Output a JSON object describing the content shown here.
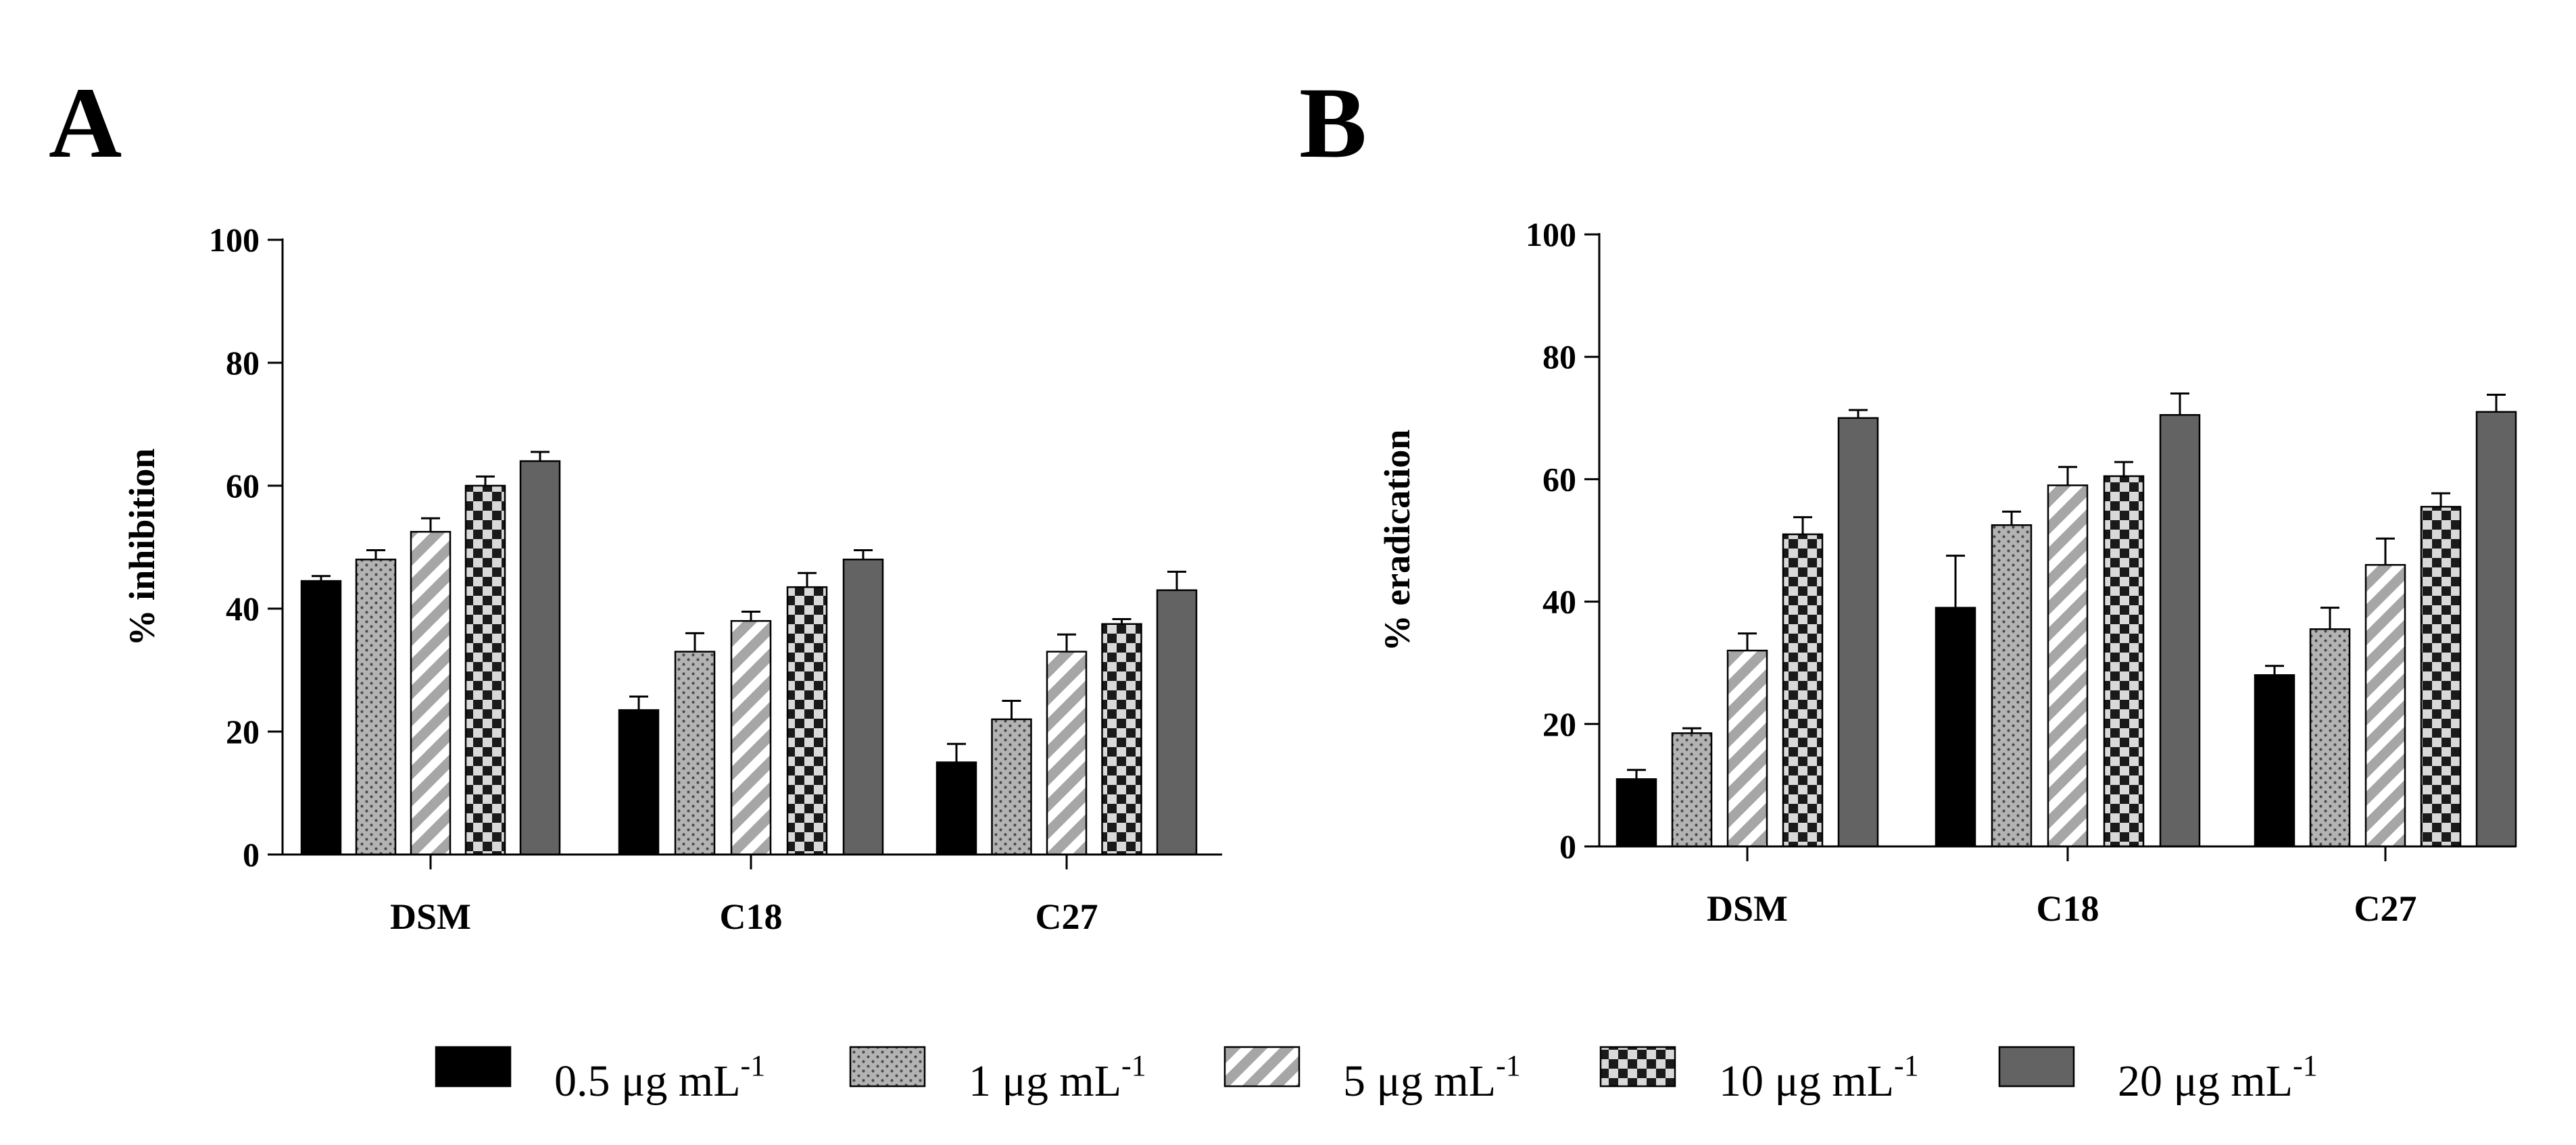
{
  "colors": {
    "black": "#000000",
    "dots_fill": "#b3b3b3",
    "stripes": "#a6a6a6",
    "checker_light": "#d9d9d9",
    "dark_grey": "#636363"
  },
  "legend": [
    {
      "label": "0.5 μg mL",
      "sup": "-1",
      "pattern": "solid-black"
    },
    {
      "label": "1 μg mL",
      "sup": "-1",
      "pattern": "dots"
    },
    {
      "label": "5 μg mL",
      "sup": "-1",
      "pattern": "stripes"
    },
    {
      "label": "10 μg mL",
      "sup": "-1",
      "pattern": "checker"
    },
    {
      "label": "20 μg mL",
      "sup": "-1",
      "pattern": "solid-grey"
    }
  ],
  "chart_data": [
    {
      "panel_label": "A",
      "type": "bar",
      "title": "",
      "xlabel": "",
      "ylabel": "% inhibition",
      "ylim": [
        0,
        100
      ],
      "yticks": [
        "0",
        "20",
        "40",
        "60",
        "80",
        "100"
      ],
      "grid": false,
      "categories": [
        "DSM",
        "C18",
        "C27"
      ],
      "series": [
        {
          "name": "0.5 μg mL-1",
          "values": [
            44.5,
            23.5,
            15
          ],
          "errors": [
            0.8,
            2.2,
            3
          ]
        },
        {
          "name": "1 μg mL-1",
          "values": [
            48,
            33,
            22
          ],
          "errors": [
            1.5,
            3,
            3
          ]
        },
        {
          "name": "5 μg mL-1",
          "values": [
            52.5,
            38,
            33
          ],
          "errors": [
            2.2,
            1.5,
            2.8
          ]
        },
        {
          "name": "10 μg mL-1",
          "values": [
            60,
            43.5,
            37.5
          ],
          "errors": [
            1.5,
            2.3,
            0.8
          ]
        },
        {
          "name": "20 μg mL-1",
          "values": [
            64,
            48,
            43
          ],
          "errors": [
            1.5,
            1.5,
            3
          ]
        }
      ]
    },
    {
      "panel_label": "B",
      "type": "bar",
      "title": "",
      "xlabel": "",
      "ylabel": "% eradication",
      "ylim": [
        0,
        100
      ],
      "yticks": [
        "0",
        "20",
        "40",
        "60",
        "80",
        "100"
      ],
      "grid": false,
      "categories": [
        "DSM",
        "C18",
        "C27"
      ],
      "series": [
        {
          "name": "0.5 μg mL-1",
          "values": [
            11,
            39,
            28
          ],
          "errors": [
            1.5,
            8.5,
            1.5
          ]
        },
        {
          "name": "1 μg mL-1",
          "values": [
            18.5,
            52.5,
            35.5
          ],
          "errors": [
            0.8,
            2.2,
            3.5
          ]
        },
        {
          "name": "5 μg mL-1",
          "values": [
            32,
            59,
            46
          ],
          "errors": [
            2.8,
            3,
            4.3
          ]
        },
        {
          "name": "10 μg mL-1",
          "values": [
            51,
            60.5,
            55.5
          ],
          "errors": [
            2.8,
            2.3,
            2.2
          ]
        },
        {
          "name": "20 μg mL-1",
          "values": [
            70,
            70.5,
            71
          ],
          "errors": [
            1.3,
            3.5,
            2.8
          ]
        }
      ]
    }
  ]
}
